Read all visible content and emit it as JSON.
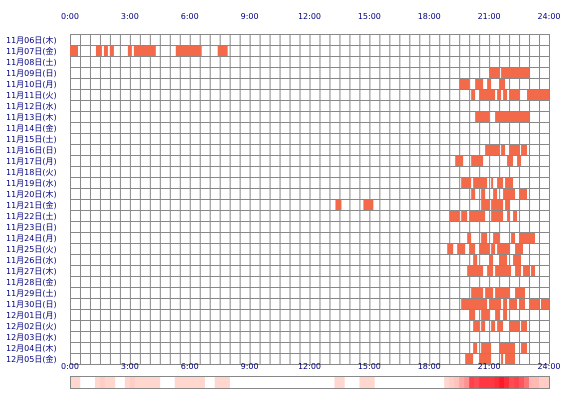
{
  "chart_data": {
    "type": "heatmap",
    "title": "",
    "xlabel": "",
    "ylabel": "",
    "xlim": [
      0,
      24
    ],
    "x_tick_labels": [
      "0:00",
      "3:00",
      "6:00",
      "9:00",
      "12:00",
      "15:00",
      "18:00",
      "21:00",
      "24:00"
    ],
    "grid": true,
    "colors": {
      "block": "#f26a4a",
      "grid": "#888888",
      "label": "#000080",
      "frame": "#888888"
    },
    "rows": [
      {
        "label": "11月06日(木)",
        "segments": []
      },
      {
        "label": "11月07日(金)",
        "segments": [
          [
            0.0,
            0.4
          ],
          [
            1.3,
            1.6
          ],
          [
            1.7,
            1.9
          ],
          [
            2.0,
            2.2
          ],
          [
            2.9,
            3.1
          ],
          [
            3.2,
            4.3
          ],
          [
            5.3,
            6.6
          ],
          [
            7.4,
            7.9
          ]
        ]
      },
      {
        "label": "11月08日(土)",
        "segments": []
      },
      {
        "label": "11月09日(日)",
        "segments": [
          [
            21.0,
            21.5
          ],
          [
            21.6,
            23.0
          ]
        ]
      },
      {
        "label": "11月10日(月)",
        "segments": [
          [
            19.5,
            20.0
          ],
          [
            20.3,
            20.7
          ],
          [
            20.9,
            21.1
          ],
          [
            21.5,
            21.8
          ]
        ]
      },
      {
        "label": "11月11日(火)",
        "segments": [
          [
            20.1,
            20.3
          ],
          [
            20.5,
            21.3
          ],
          [
            21.4,
            21.6
          ],
          [
            21.7,
            21.9
          ],
          [
            22.0,
            22.5
          ],
          [
            22.9,
            24.0
          ]
        ]
      },
      {
        "label": "11月12日(水)",
        "segments": []
      },
      {
        "label": "11月13日(木)",
        "segments": [
          [
            20.3,
            21.0
          ],
          [
            21.3,
            23.0
          ]
        ]
      },
      {
        "label": "11月14日(金)",
        "segments": []
      },
      {
        "label": "11月15日(土)",
        "segments": []
      },
      {
        "label": "11月16日(日)",
        "segments": [
          [
            20.8,
            21.5
          ],
          [
            21.6,
            21.8
          ],
          [
            22.0,
            22.5
          ],
          [
            22.6,
            22.9
          ]
        ]
      },
      {
        "label": "11月17日(月)",
        "segments": [
          [
            19.3,
            19.7
          ],
          [
            20.1,
            20.7
          ],
          [
            21.9,
            22.2
          ],
          [
            22.4,
            22.6
          ]
        ]
      },
      {
        "label": "11月18日(火)",
        "segments": []
      },
      {
        "label": "11月19日(水)",
        "segments": [
          [
            19.6,
            20.1
          ],
          [
            20.2,
            20.9
          ],
          [
            21.1,
            21.2
          ],
          [
            21.4,
            21.7
          ],
          [
            21.8,
            22.2
          ]
        ]
      },
      {
        "label": "11月20日(木)",
        "segments": [
          [
            20.1,
            20.3
          ],
          [
            20.6,
            20.8
          ],
          [
            21.2,
            21.4
          ],
          [
            21.7,
            22.3
          ],
          [
            22.5,
            22.9
          ]
        ]
      },
      {
        "label": "11月21日(金)",
        "segments": [
          [
            13.3,
            13.6
          ],
          [
            14.7,
            15.2
          ],
          [
            20.6,
            21.0
          ],
          [
            21.1,
            21.7
          ],
          [
            21.8,
            22.0
          ]
        ]
      },
      {
        "label": "11月22日(土)",
        "segments": [
          [
            19.0,
            19.5
          ],
          [
            19.6,
            19.9
          ],
          [
            20.0,
            20.8
          ],
          [
            21.1,
            21.7
          ],
          [
            21.9,
            22.0
          ],
          [
            22.2,
            22.4
          ]
        ]
      },
      {
        "label": "11月23日(日)",
        "segments": []
      },
      {
        "label": "11月24日(月)",
        "segments": [
          [
            19.9,
            20.1
          ],
          [
            20.6,
            20.9
          ],
          [
            21.2,
            21.5
          ],
          [
            22.1,
            22.3
          ],
          [
            22.5,
            23.3
          ]
        ]
      },
      {
        "label": "11月25日(火)",
        "segments": [
          [
            18.9,
            19.2
          ],
          [
            19.4,
            19.8
          ],
          [
            20.0,
            20.3
          ],
          [
            20.5,
            21.0
          ],
          [
            21.1,
            21.3
          ],
          [
            21.4,
            22.0
          ],
          [
            22.3,
            22.7
          ]
        ]
      },
      {
        "label": "11月26日(水)",
        "segments": [
          [
            20.2,
            20.4
          ],
          [
            21.0,
            21.2
          ],
          [
            21.5,
            21.9
          ],
          [
            22.2,
            22.6
          ]
        ]
      },
      {
        "label": "11月27日(木)",
        "segments": [
          [
            19.9,
            20.7
          ],
          [
            20.9,
            21.2
          ],
          [
            21.3,
            22.1
          ],
          [
            22.3,
            22.6
          ],
          [
            22.7,
            23.0
          ],
          [
            23.1,
            23.3
          ]
        ]
      },
      {
        "label": "11月28日(金)",
        "segments": []
      },
      {
        "label": "11月29日(土)",
        "segments": [
          [
            20.1,
            20.7
          ],
          [
            20.8,
            21.2
          ],
          [
            21.3,
            22.0
          ],
          [
            22.3,
            22.8
          ]
        ]
      },
      {
        "label": "11月30日(日)",
        "segments": [
          [
            19.6,
            20.9
          ],
          [
            21.0,
            21.6
          ],
          [
            21.7,
            21.9
          ],
          [
            22.0,
            22.4
          ],
          [
            22.5,
            22.8
          ],
          [
            23.0,
            23.5
          ],
          [
            23.6,
            24.0
          ]
        ]
      },
      {
        "label": "12月01日(月)",
        "segments": [
          [
            20.0,
            20.3
          ],
          [
            20.6,
            21.0
          ],
          [
            21.3,
            21.5
          ],
          [
            21.7,
            21.9
          ]
        ]
      },
      {
        "label": "12月02日(火)",
        "segments": [
          [
            20.2,
            20.5
          ],
          [
            20.6,
            20.8
          ],
          [
            21.1,
            21.3
          ],
          [
            21.4,
            21.7
          ],
          [
            22.0,
            22.5
          ],
          [
            22.6,
            22.9
          ]
        ]
      },
      {
        "label": "12月03日(水)",
        "segments": []
      },
      {
        "label": "12月04日(木)",
        "segments": [
          [
            20.2,
            20.4
          ],
          [
            20.6,
            21.1
          ],
          [
            21.5,
            22.3
          ],
          [
            22.6,
            22.9
          ]
        ]
      },
      {
        "label": "12月05日(金)",
        "segments": [
          [
            19.8,
            20.2
          ],
          [
            20.5,
            21.1
          ],
          [
            21.6,
            21.7
          ],
          [
            21.8,
            22.3
          ]
        ]
      }
    ],
    "summary_bar": {
      "x_tick_labels": [
        "0:00",
        "3:00",
        "6:00",
        "9:00",
        "12:00",
        "15:00",
        "18:00",
        "21:00",
        "24:00"
      ]
    }
  }
}
